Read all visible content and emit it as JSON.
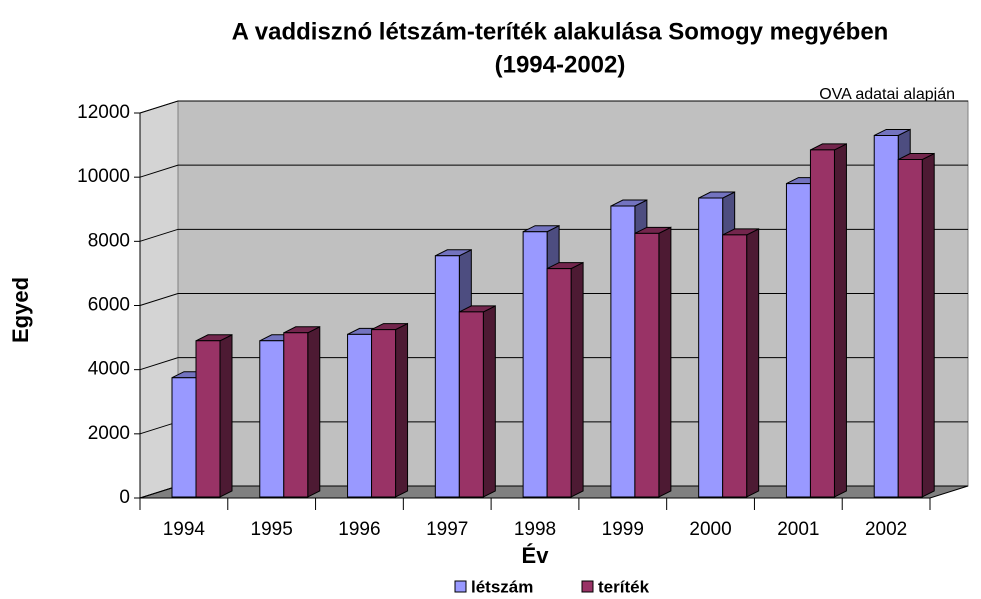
{
  "chart_data": {
    "type": "bar3d",
    "title": [
      "A vaddisznó létszám-teríték alakulása Somogy megyében",
      "(1994-2002)"
    ],
    "subtitle": "OVA adatai alapján",
    "y_label": "Egyed",
    "x_label": "Év",
    "categories": [
      "1994",
      "1995",
      "1996",
      "1997",
      "1998",
      "1999",
      "2000",
      "2001",
      "2002"
    ],
    "series": [
      {
        "name": "létszám",
        "color": "#9999ff",
        "values": [
          3750,
          4900,
          5100,
          7550,
          8300,
          9100,
          9350,
          9800,
          11300
        ]
      },
      {
        "name": "teríték",
        "color": "#993366",
        "values": [
          4900,
          5150,
          5250,
          5800,
          7150,
          8250,
          8200,
          10850,
          10550
        ]
      }
    ],
    "ylim": [
      0,
      12000
    ],
    "yticks": [
      0,
      2000,
      4000,
      6000,
      8000,
      10000,
      12000
    ],
    "grid": true,
    "legend": "bottom"
  }
}
